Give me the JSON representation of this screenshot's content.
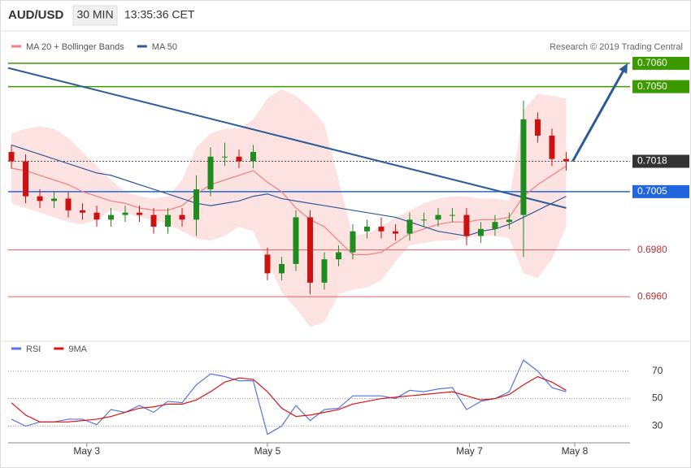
{
  "header": {
    "symbol": "AUD/USD",
    "interval": "30 MIN",
    "time": "13:35:36 CET",
    "credit": "Research © 2019 Trading Central"
  },
  "chart_data": [
    {
      "type": "candlestick",
      "x": [
        0,
        1,
        2,
        3,
        4,
        5,
        6,
        7,
        8,
        9,
        10,
        11,
        12,
        13,
        14,
        15,
        16,
        17,
        18,
        19,
        20,
        21,
        22,
        23,
        24,
        25,
        26,
        27,
        28,
        29,
        30,
        31,
        32,
        33,
        34,
        35,
        36,
        37,
        38,
        39
      ],
      "open": [
        0.7022,
        0.7018,
        0.7003,
        0.7001,
        0.7002,
        0.6997,
        0.6996,
        0.6993,
        0.6995,
        0.6996,
        0.6995,
        0.699,
        0.6995,
        0.6993,
        0.7006,
        0.702,
        0.702,
        0.7018,
        0.6978,
        0.697,
        0.6974,
        0.6994,
        0.6966,
        0.6976,
        0.6979,
        0.6988,
        0.699,
        0.6988,
        0.6987,
        0.6993,
        0.6993,
        0.6995,
        0.6995,
        0.6986,
        0.6989,
        0.6992,
        0.6995,
        0.7036,
        0.7029,
        0.7019
      ],
      "high": [
        0.7025,
        0.7021,
        0.7006,
        0.7005,
        0.7005,
        0.7,
        0.6999,
        0.6998,
        0.6999,
        0.6999,
        0.6998,
        0.6998,
        0.6998,
        0.7012,
        0.7024,
        0.7026,
        0.7023,
        0.7025,
        0.6981,
        0.6977,
        0.6997,
        0.6997,
        0.6979,
        0.6982,
        0.6991,
        0.6993,
        0.6994,
        0.6991,
        0.6996,
        0.6996,
        0.6998,
        0.6998,
        0.6998,
        0.6992,
        0.6995,
        0.6996,
        0.7044,
        0.7039,
        0.7032,
        0.7022
      ],
      "low": [
        0.7015,
        0.7,
        0.6998,
        0.6998,
        0.6994,
        0.6993,
        0.699,
        0.699,
        0.6992,
        0.6992,
        0.6987,
        0.6987,
        0.699,
        0.6986,
        0.7003,
        0.7016,
        0.7015,
        0.7015,
        0.6967,
        0.6967,
        0.6971,
        0.6961,
        0.6963,
        0.6973,
        0.6976,
        0.6985,
        0.6985,
        0.6984,
        0.6984,
        0.699,
        0.699,
        0.6992,
        0.6982,
        0.6983,
        0.6986,
        0.6989,
        0.6977,
        0.7026,
        0.7016,
        0.7014
      ],
      "close": [
        0.7018,
        0.7003,
        0.7001,
        0.7002,
        0.6997,
        0.6996,
        0.6993,
        0.6995,
        0.6996,
        0.6995,
        0.699,
        0.6995,
        0.6993,
        0.7006,
        0.702,
        0.702,
        0.7018,
        0.7022,
        0.697,
        0.6974,
        0.6994,
        0.6966,
        0.6976,
        0.6979,
        0.6988,
        0.699,
        0.6988,
        0.6987,
        0.6993,
        0.6993,
        0.6995,
        0.6995,
        0.6986,
        0.6989,
        0.6992,
        0.6993,
        0.7036,
        0.7029,
        0.7019,
        0.7018
      ],
      "up_color": "#1e8c1e",
      "down_color": "#cc1111",
      "series": [
        {
          "name": "MA 20 + Bollinger Bands",
          "color": "#f08080",
          "band_color": "#fde2e2",
          "values": [
            0.7015,
            0.7014,
            0.7012,
            0.701,
            0.7008,
            0.7005,
            0.7003,
            0.7001,
            0.7,
            0.6998,
            0.6997,
            0.6997,
            0.6999,
            0.7004,
            0.7008,
            0.701,
            0.7012,
            0.7014,
            0.7009,
            0.7005,
            0.6998,
            0.6993,
            0.699,
            0.6984,
            0.6978,
            0.6978,
            0.6979,
            0.6983,
            0.6987,
            0.6989,
            0.6991,
            0.6992,
            0.6992,
            0.6993,
            0.6993,
            0.6994,
            0.7003,
            0.7008,
            0.7012,
            0.7016
          ],
          "upper": [
            0.703,
            0.7032,
            0.7033,
            0.7032,
            0.7028,
            0.7022,
            0.7016,
            0.701,
            0.7005,
            0.7003,
            0.7002,
            0.7003,
            0.701,
            0.7024,
            0.703,
            0.7032,
            0.7032,
            0.7036,
            0.7045,
            0.7049,
            0.7046,
            0.7041,
            0.7034,
            0.701,
            0.6986,
            0.6987,
            0.699,
            0.6994,
            0.6997,
            0.7,
            0.7002,
            0.7003,
            0.7003,
            0.7002,
            0.7002,
            0.7001,
            0.704,
            0.7047,
            0.7046,
            0.7045
          ],
          "lower": [
            0.7,
            0.6998,
            0.6996,
            0.6994,
            0.6992,
            0.6991,
            0.6993,
            0.6997,
            0.6996,
            0.6994,
            0.6993,
            0.6991,
            0.6988,
            0.6985,
            0.6984,
            0.6986,
            0.699,
            0.6988,
            0.6975,
            0.6962,
            0.6955,
            0.6947,
            0.6949,
            0.6961,
            0.6963,
            0.6964,
            0.6967,
            0.6975,
            0.6982,
            0.6983,
            0.6984,
            0.6984,
            0.6985,
            0.6986,
            0.6986,
            0.6985,
            0.697,
            0.6968,
            0.6976,
            0.699
          ]
        },
        {
          "name": "MA 50",
          "color": "#2d5b9a",
          "values": [
            0.7025,
            0.7023,
            0.7021,
            0.7019,
            0.7017,
            0.7015,
            0.7013,
            0.7012,
            0.701,
            0.7008,
            0.7006,
            0.7004,
            0.7002,
            0.7,
            0.6999,
            0.7,
            0.7001,
            0.7003,
            0.7004,
            0.7002,
            0.7001,
            0.7,
            0.6999,
            0.6998,
            0.6997,
            0.6996,
            0.6995,
            0.6994,
            0.6992,
            0.699,
            0.6988,
            0.6987,
            0.6986,
            0.6988,
            0.6989,
            0.6991,
            0.6994,
            0.6997,
            0.7,
            0.7003
          ]
        }
      ],
      "trend_line": {
        "color": "#2d5b9a",
        "values": [
          0.7058,
          0.6998
        ]
      },
      "arrow": {
        "color": "#2d5b9a",
        "values": [
          0.7018,
          0.706
        ]
      },
      "levels": [
        {
          "value": 0.706,
          "label": "0.7060",
          "color": "#3c9a00",
          "style": "solid",
          "label_bg": "#3c9a00"
        },
        {
          "value": 0.705,
          "label": "0.7050",
          "color": "#3c9a00",
          "style": "solid",
          "label_bg": "#3c9a00"
        },
        {
          "value": 0.7018,
          "label": "0.7018",
          "color": "#555555",
          "style": "dotted",
          "label_bg": "#333333"
        },
        {
          "value": 0.7005,
          "label": "0.7005",
          "color": "#2266dd",
          "style": "solid",
          "label_bg": "#2266dd"
        },
        {
          "value": 0.698,
          "label": "0.6980",
          "color": "#e06060",
          "style": "solid",
          "label_bg": null
        },
        {
          "value": 0.696,
          "label": "0.6960",
          "color": "#e06060",
          "style": "solid",
          "label_bg": null
        }
      ],
      "xlim": [
        -0.23,
        43.49
      ],
      "ylim": [
        0.69374,
        0.70732
      ]
    },
    {
      "type": "line",
      "series": [
        {
          "name": "RSI",
          "color": "#5577dd",
          "values": [
            35,
            30,
            33,
            33,
            35,
            35,
            31,
            42,
            40,
            45,
            40,
            48,
            47,
            60,
            68,
            66,
            63,
            63,
            24,
            30,
            45,
            34,
            42,
            43,
            52,
            52,
            52,
            50,
            56,
            55,
            57,
            58,
            42,
            48,
            50,
            55,
            78,
            70,
            58,
            55
          ]
        },
        {
          "name": "9MA",
          "color": "#dd1111",
          "values": [
            47,
            38,
            33,
            33,
            33,
            34,
            35,
            37,
            40,
            43,
            44,
            46,
            46,
            49,
            55,
            62,
            65,
            64,
            55,
            43,
            37,
            38,
            40,
            42,
            46,
            48,
            50,
            51,
            52,
            53,
            54,
            55,
            52,
            49,
            50,
            53,
            60,
            66,
            62,
            56
          ]
        }
      ],
      "xlim": [
        -0.23,
        43.49
      ],
      "ylim": [
        19,
        87
      ],
      "yticks": [
        30,
        50,
        70
      ],
      "grid": true,
      "xticks": [
        {
          "value": 5.3,
          "label": "May 3"
        },
        {
          "value": 18,
          "label": "May 5"
        },
        {
          "value": 32.2,
          "label": "May 7"
        },
        {
          "value": 39.6,
          "label": "May 8"
        }
      ]
    }
  ]
}
